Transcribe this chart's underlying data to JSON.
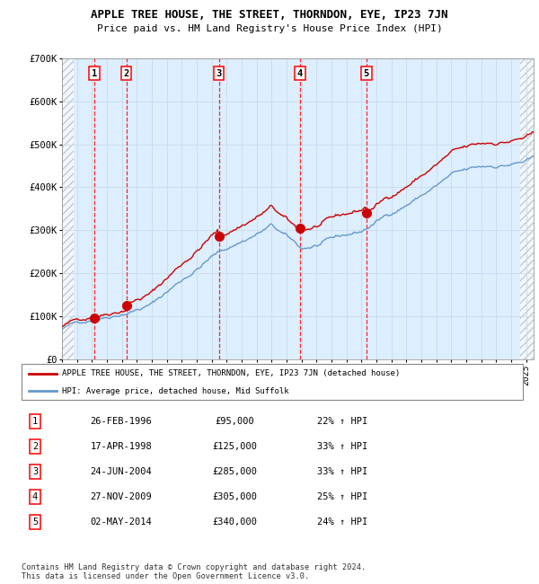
{
  "title": "APPLE TREE HOUSE, THE STREET, THORNDON, EYE, IP23 7JN",
  "subtitle": "Price paid vs. HM Land Registry's House Price Index (HPI)",
  "sales": [
    {
      "label": "1",
      "date": 1996.15,
      "price": 95000
    },
    {
      "label": "2",
      "date": 1998.3,
      "price": 125000
    },
    {
      "label": "3",
      "date": 2004.48,
      "price": 285000
    },
    {
      "label": "4",
      "date": 2009.9,
      "price": 305000
    },
    {
      "label": "5",
      "date": 2014.33,
      "price": 340000
    }
  ],
  "ylim": [
    0,
    700000
  ],
  "yticks": [
    0,
    100000,
    200000,
    300000,
    400000,
    500000,
    600000,
    700000
  ],
  "ytick_labels": [
    "£0",
    "£100K",
    "£200K",
    "£300K",
    "£400K",
    "£500K",
    "£600K",
    "£700K"
  ],
  "xlim_start": 1994.0,
  "xlim_end": 2025.5,
  "hpi_color": "#6699cc",
  "price_color": "#cc0000",
  "grid_color": "#ccdde8",
  "plot_bg_color": "#ddeeff",
  "legend_label_red": "APPLE TREE HOUSE, THE STREET, THORNDON, EYE, IP23 7JN (detached house)",
  "legend_label_blue": "HPI: Average price, detached house, Mid Suffolk",
  "table_data": [
    {
      "num": "1",
      "date": "26-FEB-1996",
      "price": "£95,000",
      "hpi": "22% ↑ HPI"
    },
    {
      "num": "2",
      "date": "17-APR-1998",
      "price": "£125,000",
      "hpi": "33% ↑ HPI"
    },
    {
      "num": "3",
      "date": "24-JUN-2004",
      "price": "£285,000",
      "hpi": "33% ↑ HPI"
    },
    {
      "num": "4",
      "date": "27-NOV-2009",
      "price": "£305,000",
      "hpi": "25% ↑ HPI"
    },
    {
      "num": "5",
      "date": "02-MAY-2014",
      "price": "£340,000",
      "hpi": "24% ↑ HPI"
    }
  ],
  "footnote1": "Contains HM Land Registry data © Crown copyright and database right 2024.",
  "footnote2": "This data is licensed under the Open Government Licence v3.0."
}
